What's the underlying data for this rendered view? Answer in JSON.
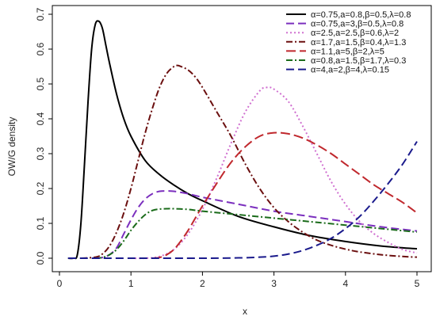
{
  "chart_data": {
    "type": "line",
    "xlabel": "x",
    "ylabel": "OW/G density",
    "xlim": [
      0,
      5
    ],
    "ylim": [
      0,
      0.7
    ],
    "xticks": [
      0,
      1,
      2,
      3,
      4,
      5
    ],
    "yticks": [
      0.0,
      0.1,
      0.2,
      0.3,
      0.4,
      0.5,
      0.6,
      0.7
    ],
    "ytick_labels": [
      "0.0",
      "0.1",
      "0.2",
      "0.3",
      "0.4",
      "0.5",
      "0.6",
      "0.7"
    ],
    "grid": false,
    "legend_position": "top-right",
    "series": [
      {
        "name": "α=0.75,a=0.8,β=0.5,λ=0.8",
        "color": "#000000",
        "dash": "solid",
        "x": [
          0.12,
          0.2,
          0.25,
          0.3,
          0.35,
          0.4,
          0.45,
          0.5,
          0.55,
          0.6,
          0.65,
          0.7,
          0.8,
          0.9,
          1.0,
          1.2,
          1.4,
          1.6,
          1.8,
          2.0,
          2.5,
          3.0,
          3.5,
          4.0,
          4.5,
          5.0
        ],
        "y": [
          0.0,
          0.0,
          0.01,
          0.1,
          0.27,
          0.45,
          0.6,
          0.67,
          0.68,
          0.66,
          0.61,
          0.56,
          0.47,
          0.4,
          0.35,
          0.28,
          0.24,
          0.21,
          0.185,
          0.165,
          0.12,
          0.09,
          0.065,
          0.048,
          0.035,
          0.027
        ]
      },
      {
        "name": "α=0.75,a=3,β=0.5,λ=0.8",
        "color": "#7b2fbe",
        "dash": "10,5",
        "x": [
          0.5,
          0.6,
          0.7,
          0.8,
          0.9,
          1.0,
          1.1,
          1.2,
          1.3,
          1.4,
          1.5,
          1.6,
          1.8,
          2.0,
          2.5,
          3.0,
          3.5,
          4.0,
          4.5,
          5.0
        ],
        "y": [
          0.0,
          0.002,
          0.01,
          0.03,
          0.07,
          0.11,
          0.145,
          0.17,
          0.185,
          0.192,
          0.193,
          0.192,
          0.185,
          0.175,
          0.155,
          0.135,
          0.12,
          0.105,
          0.09,
          0.078
        ]
      },
      {
        "name": "α=2.5,a=2.5,β=0.6,λ=2",
        "color": "#d070d0",
        "dash": "2,3",
        "x": [
          1.0,
          1.2,
          1.4,
          1.6,
          1.8,
          2.0,
          2.2,
          2.4,
          2.6,
          2.8,
          2.9,
          3.0,
          3.2,
          3.4,
          3.6,
          3.8,
          4.0,
          4.2,
          4.4,
          4.6,
          4.8,
          5.0
        ],
        "y": [
          0.0,
          0.0,
          0.005,
          0.025,
          0.07,
          0.14,
          0.23,
          0.33,
          0.42,
          0.48,
          0.49,
          0.485,
          0.45,
          0.38,
          0.3,
          0.22,
          0.155,
          0.105,
          0.07,
          0.045,
          0.025,
          0.015
        ]
      },
      {
        "name": "α=1.7,a=1.5,β=0.4,λ=1.3",
        "color": "#6b0f0f",
        "dash": "8,3,2,3",
        "x": [
          0.3,
          0.5,
          0.6,
          0.7,
          0.8,
          0.9,
          1.0,
          1.1,
          1.2,
          1.3,
          1.4,
          1.5,
          1.6,
          1.65,
          1.7,
          1.8,
          1.9,
          2.0,
          2.2,
          2.4,
          2.6,
          2.8,
          3.0,
          3.2,
          3.4,
          3.6,
          3.8,
          4.0,
          4.2,
          4.5,
          4.8,
          5.0
        ],
        "y": [
          0.0,
          0.003,
          0.012,
          0.035,
          0.075,
          0.13,
          0.2,
          0.28,
          0.36,
          0.43,
          0.49,
          0.53,
          0.55,
          0.553,
          0.55,
          0.54,
          0.52,
          0.49,
          0.42,
          0.35,
          0.27,
          0.2,
          0.145,
          0.105,
          0.075,
          0.052,
          0.037,
          0.026,
          0.018,
          0.01,
          0.005,
          0.003
        ]
      },
      {
        "name": "α=1.1,a=5,β=2,λ=5",
        "color": "#c0282d",
        "dash": "12,5",
        "x": [
          1.3,
          1.4,
          1.5,
          1.6,
          1.7,
          1.8,
          1.9,
          2.0,
          2.2,
          2.4,
          2.6,
          2.8,
          3.0,
          3.2,
          3.4,
          3.6,
          3.8,
          4.0,
          4.2,
          4.4,
          4.6,
          4.8,
          5.0
        ],
        "y": [
          0.0,
          0.002,
          0.01,
          0.025,
          0.05,
          0.08,
          0.115,
          0.15,
          0.215,
          0.275,
          0.32,
          0.35,
          0.36,
          0.357,
          0.345,
          0.325,
          0.3,
          0.27,
          0.24,
          0.21,
          0.185,
          0.16,
          0.13
        ]
      },
      {
        "name": "α=0.8,a=1.5,β=1.7,λ=0.3",
        "color": "#1a6b1a",
        "dash": "8,3,2,3",
        "x": [
          0.5,
          0.6,
          0.7,
          0.8,
          0.9,
          1.0,
          1.1,
          1.2,
          1.3,
          1.4,
          1.5,
          1.6,
          1.8,
          2.0,
          2.5,
          3.0,
          3.5,
          4.0,
          4.5,
          5.0
        ],
        "y": [
          0.0,
          0.002,
          0.01,
          0.025,
          0.05,
          0.08,
          0.105,
          0.125,
          0.137,
          0.141,
          0.142,
          0.142,
          0.14,
          0.135,
          0.125,
          0.115,
          0.105,
          0.095,
          0.085,
          0.075
        ]
      },
      {
        "name": "α=4,a=2,β=4,λ=0.15",
        "color": "#1a1a8c",
        "dash": "10,5",
        "x": [
          0.12,
          1.0,
          2.0,
          2.5,
          2.8,
          3.0,
          3.2,
          3.4,
          3.6,
          3.8,
          4.0,
          4.2,
          4.4,
          4.6,
          4.8,
          5.0
        ],
        "y": [
          0.0,
          0.0,
          0.0,
          0.001,
          0.003,
          0.006,
          0.012,
          0.022,
          0.037,
          0.057,
          0.085,
          0.12,
          0.165,
          0.215,
          0.27,
          0.335
        ]
      }
    ]
  }
}
